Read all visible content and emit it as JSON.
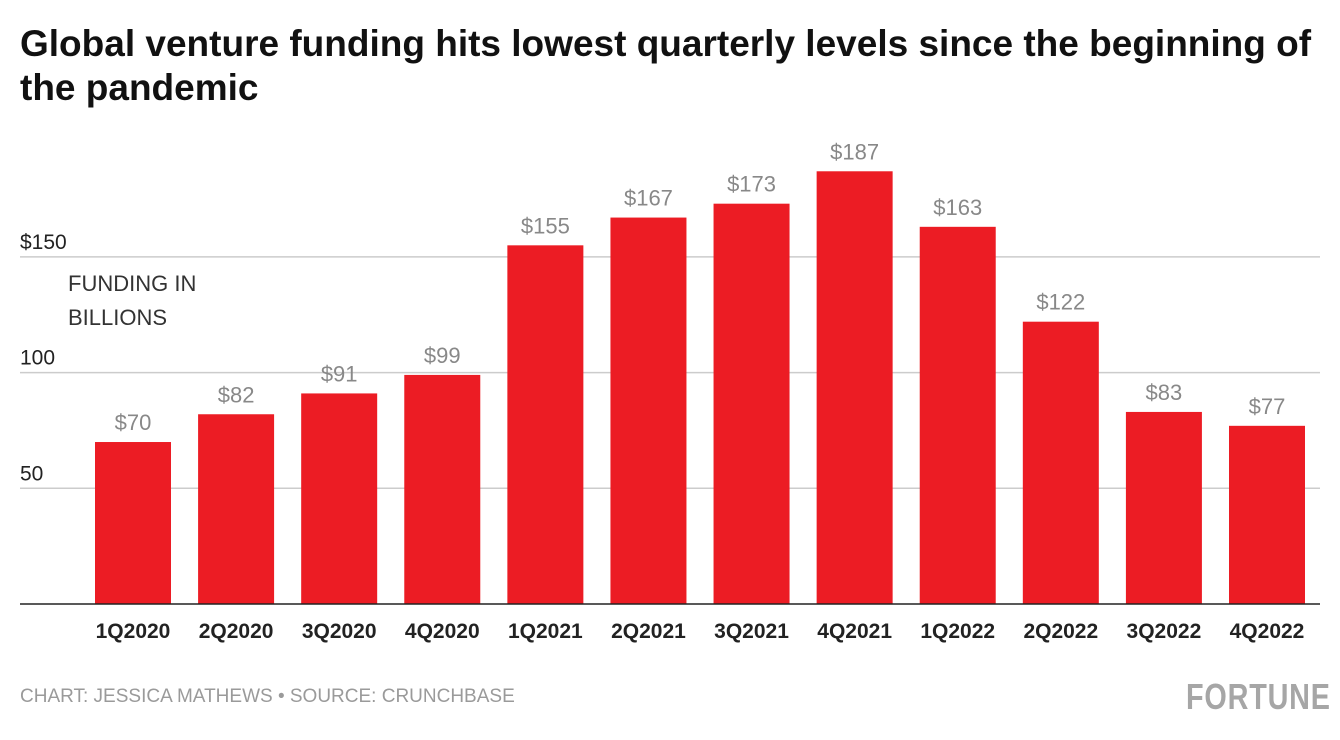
{
  "chart_data": {
    "type": "bar",
    "title": "Global venture funding hits lowest quarterly levels since the beginning of the pandemic",
    "ylabel": "FUNDING IN BILLIONS",
    "xlabel": "",
    "categories": [
      "1Q2020",
      "2Q2020",
      "3Q2020",
      "4Q2020",
      "1Q2021",
      "2Q2021",
      "3Q2021",
      "4Q2021",
      "1Q2022",
      "2Q2022",
      "3Q2022",
      "4Q2022"
    ],
    "values": [
      70,
      82,
      91,
      99,
      155,
      167,
      173,
      187,
      163,
      122,
      83,
      77
    ],
    "data_labels": [
      "$70",
      "$82",
      "$91",
      "$99",
      "$155",
      "$167",
      "$173",
      "$187",
      "$163",
      "$122",
      "$83",
      "$77"
    ],
    "yticks": [
      50,
      100,
      150
    ],
    "ytick_labels": [
      "50",
      "100",
      "$150"
    ],
    "ylim": [
      0,
      200
    ],
    "grid": true,
    "colors": {
      "bar": "#ec1c24",
      "grid": "#cccccc",
      "data_label": "#888888"
    }
  },
  "footer": "CHART: JESSICA MATHEWS • SOURCE: CRUNCHBASE",
  "logo": "FORTUNE"
}
